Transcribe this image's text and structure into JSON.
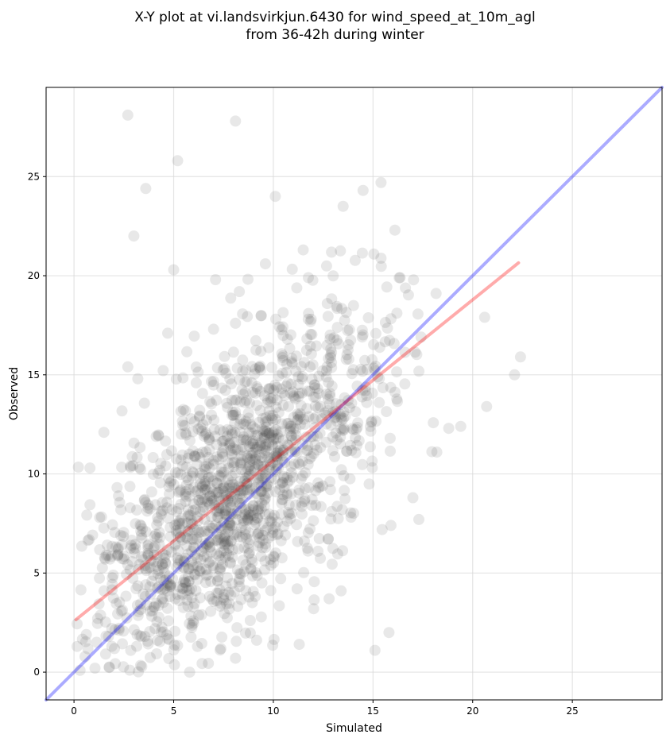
{
  "chart_data": {
    "type": "scatter",
    "title_lines": [
      "X-Y plot at vi.landsvirkjun.6430 for wind_speed_at_10m_agl",
      "from 36-42h during winter"
    ],
    "xlabel": "Simulated",
    "ylabel": "Observed",
    "xlim": [
      -1.4,
      29.5
    ],
    "ylim": [
      -1.4,
      29.5
    ],
    "xticks": [
      0,
      5,
      10,
      15,
      20,
      25
    ],
    "yticks": [
      0,
      5,
      10,
      15,
      20,
      25
    ],
    "grid": true,
    "point_color": "#444444",
    "point_alpha": 0.12,
    "lines": [
      {
        "role": "one-to-one",
        "color": "#0000ff",
        "alpha": 0.33,
        "x": [
          -1.4,
          29.5
        ],
        "y": [
          -1.4,
          29.5
        ]
      },
      {
        "role": "regression",
        "color": "#ff0000",
        "alpha": 0.33,
        "x": [
          0.1,
          22.3
        ],
        "y": [
          2.65,
          20.65
        ]
      }
    ],
    "highlighted_points": [
      {
        "x": 2.7,
        "y": 28.1
      },
      {
        "x": 8.1,
        "y": 27.8
      },
      {
        "x": 5.2,
        "y": 25.8
      },
      {
        "x": 3.6,
        "y": 24.4
      },
      {
        "x": 3.0,
        "y": 22.0
      },
      {
        "x": 10.1,
        "y": 24.0
      },
      {
        "x": 5.0,
        "y": 20.3
      },
      {
        "x": 7.1,
        "y": 19.8
      },
      {
        "x": 9.6,
        "y": 20.6
      },
      {
        "x": 11.5,
        "y": 21.3
      },
      {
        "x": 13.5,
        "y": 23.5
      },
      {
        "x": 14.5,
        "y": 24.3
      },
      {
        "x": 15.4,
        "y": 24.7
      },
      {
        "x": 16.1,
        "y": 22.3
      },
      {
        "x": 20.6,
        "y": 17.9
      },
      {
        "x": 22.4,
        "y": 15.9
      },
      {
        "x": 22.1,
        "y": 15.0
      },
      {
        "x": 20.7,
        "y": 13.4
      },
      {
        "x": 18.8,
        "y": 12.3
      },
      {
        "x": 19.4,
        "y": 12.4
      },
      {
        "x": 18.2,
        "y": 11.1
      },
      {
        "x": 17.0,
        "y": 8.8
      },
      {
        "x": 15.8,
        "y": 2.0
      },
      {
        "x": 15.1,
        "y": 1.1
      },
      {
        "x": 13.4,
        "y": 4.1
      },
      {
        "x": 12.8,
        "y": 3.7
      },
      {
        "x": 11.3,
        "y": 1.4
      },
      {
        "x": 8.1,
        "y": 0.7
      },
      {
        "x": 5.8,
        "y": 0.0
      },
      {
        "x": 2.8,
        "y": 0.1
      },
      {
        "x": 0.8,
        "y": 10.3
      },
      {
        "x": 1.5,
        "y": 12.1
      },
      {
        "x": 2.7,
        "y": 15.4
      },
      {
        "x": 3.2,
        "y": 14.8
      },
      {
        "x": 4.7,
        "y": 17.1
      },
      {
        "x": 7.0,
        "y": 17.3
      },
      {
        "x": 8.1,
        "y": 17.6
      },
      {
        "x": 11.9,
        "y": 17.8
      },
      {
        "x": 15.9,
        "y": 7.4
      },
      {
        "x": 17.3,
        "y": 7.7
      }
    ]
  }
}
